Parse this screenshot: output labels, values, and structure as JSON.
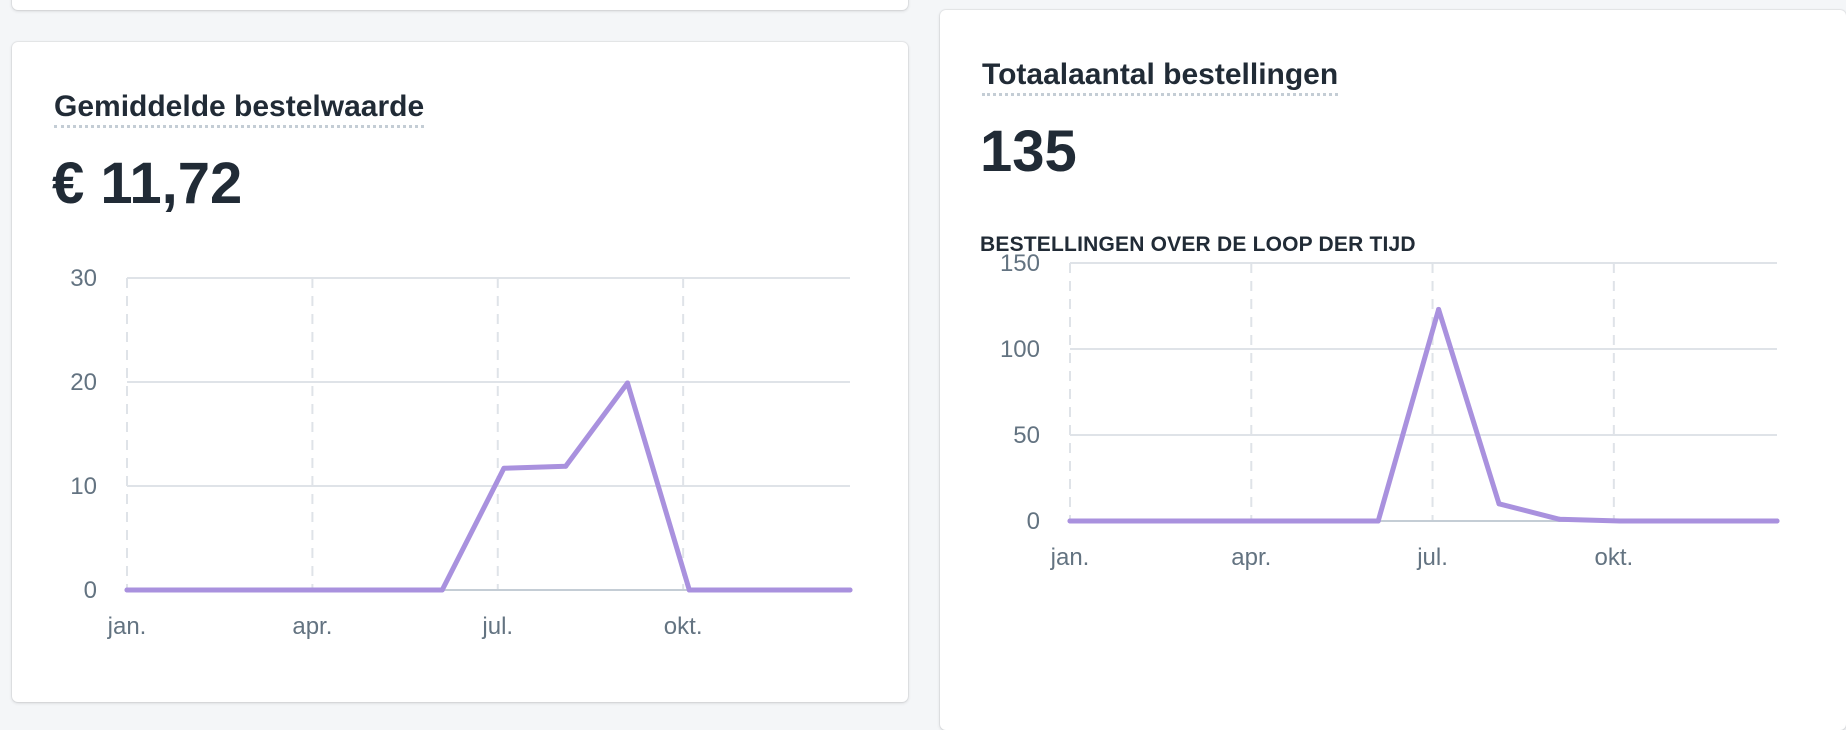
{
  "colors": {
    "series": "#a991de",
    "grid": "#dfe3e8",
    "axis_text": "#637381",
    "card_bg": "#ffffff",
    "page_bg": "#f4f6f8"
  },
  "left_card": {
    "title": "Gemiddelde bestelwaarde",
    "value": "€ 11,72"
  },
  "right_card": {
    "title": "Totaalaantal bestellingen",
    "value": "135",
    "subheading": "BESTELLINGEN OVER DE LOOP DER TIJD"
  },
  "chart_data": [
    {
      "type": "line",
      "title": "",
      "xlabel": "",
      "ylabel": "",
      "x_tick_labels": [
        "jan.",
        "apr.",
        "jul.",
        "okt."
      ],
      "x_ticks_month": [
        1,
        4,
        7,
        10
      ],
      "x_range_month": [
        1,
        12.7
      ],
      "y_ticks": [
        0,
        10,
        20,
        30
      ],
      "ylim": [
        0,
        30
      ],
      "grid": true,
      "series": [
        {
          "x_month": [
            1,
            6.1,
            7.1,
            8.1,
            9.1,
            10.1,
            12.7
          ],
          "values": [
            0,
            0,
            11.7,
            11.9,
            19.9,
            0,
            0
          ]
        }
      ]
    },
    {
      "type": "line",
      "title": "BESTELLINGEN OVER DE LOOP DER TIJD",
      "xlabel": "",
      "ylabel": "",
      "x_tick_labels": [
        "jan.",
        "apr.",
        "jul.",
        "okt."
      ],
      "x_ticks_month": [
        1,
        4,
        7,
        10
      ],
      "x_range_month": [
        1,
        12.7
      ],
      "y_ticks": [
        0,
        50,
        100,
        150
      ],
      "ylim": [
        0,
        150
      ],
      "grid": true,
      "series": [
        {
          "x_month": [
            1,
            6.1,
            7.1,
            8.1,
            9.1,
            10.1,
            12.7
          ],
          "values": [
            0,
            0,
            123,
            10,
            1,
            0,
            0
          ]
        }
      ]
    }
  ]
}
